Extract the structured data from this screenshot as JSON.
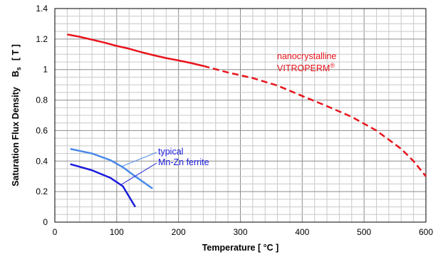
{
  "chart_data": {
    "type": "line",
    "xlabel": "Temperature  [ °C ]",
    "ylabel_main": "Saturation Flux Density",
    "ylabel_symbol": "B",
    "ylabel_subscript": "s",
    "ylabel_unit": "[ T ]",
    "xlim": [
      0,
      600
    ],
    "ylim": [
      0,
      1.4
    ],
    "x_ticks": [
      "0",
      "100",
      "200",
      "300",
      "400",
      "500",
      "600"
    ],
    "y_ticks": [
      "0",
      "0.2",
      "0.4",
      "0.6",
      "0.8",
      "1",
      "1.2",
      "1.4"
    ],
    "grid": true,
    "series": [
      {
        "id": "vitroperm-solid",
        "color": "#e8141c",
        "dashed": false,
        "x": [
          20,
          40,
          60,
          80,
          100,
          120,
          140,
          160,
          180,
          200,
          220,
          240
        ],
        "y": [
          1.23,
          1.215,
          1.196,
          1.177,
          1.155,
          1.137,
          1.114,
          1.094,
          1.075,
          1.06,
          1.043,
          1.024
        ]
      },
      {
        "id": "vitroperm-dashed",
        "color": "#e8141c",
        "dashed": true,
        "x": [
          240,
          280,
          320,
          360,
          400,
          440,
          480,
          520,
          560,
          580,
          600
        ],
        "y": [
          1.024,
          0.981,
          0.944,
          0.895,
          0.827,
          0.76,
          0.69,
          0.6,
          0.48,
          0.4,
          0.3
        ]
      },
      {
        "id": "ferrite-upper",
        "color": "#4a8ae8",
        "dashed": false,
        "x": [
          25,
          60,
          90,
          110,
          130,
          158
        ],
        "y": [
          0.48,
          0.45,
          0.406,
          0.36,
          0.3,
          0.22
        ]
      },
      {
        "id": "ferrite-lower",
        "color": "#1a1adc",
        "dashed": false,
        "x": [
          25,
          60,
          90,
          110,
          130
        ],
        "y": [
          0.38,
          0.34,
          0.29,
          0.235,
          0.1
        ]
      }
    ],
    "annotations": [
      {
        "lines": [
          "nanocrystalline",
          "VITROPERM"
        ],
        "superscript": "®",
        "color": "#e8141c"
      },
      {
        "lines": [
          "typical",
          "Mn-Zn ferrite"
        ],
        "color": "#1a1adc"
      }
    ]
  }
}
